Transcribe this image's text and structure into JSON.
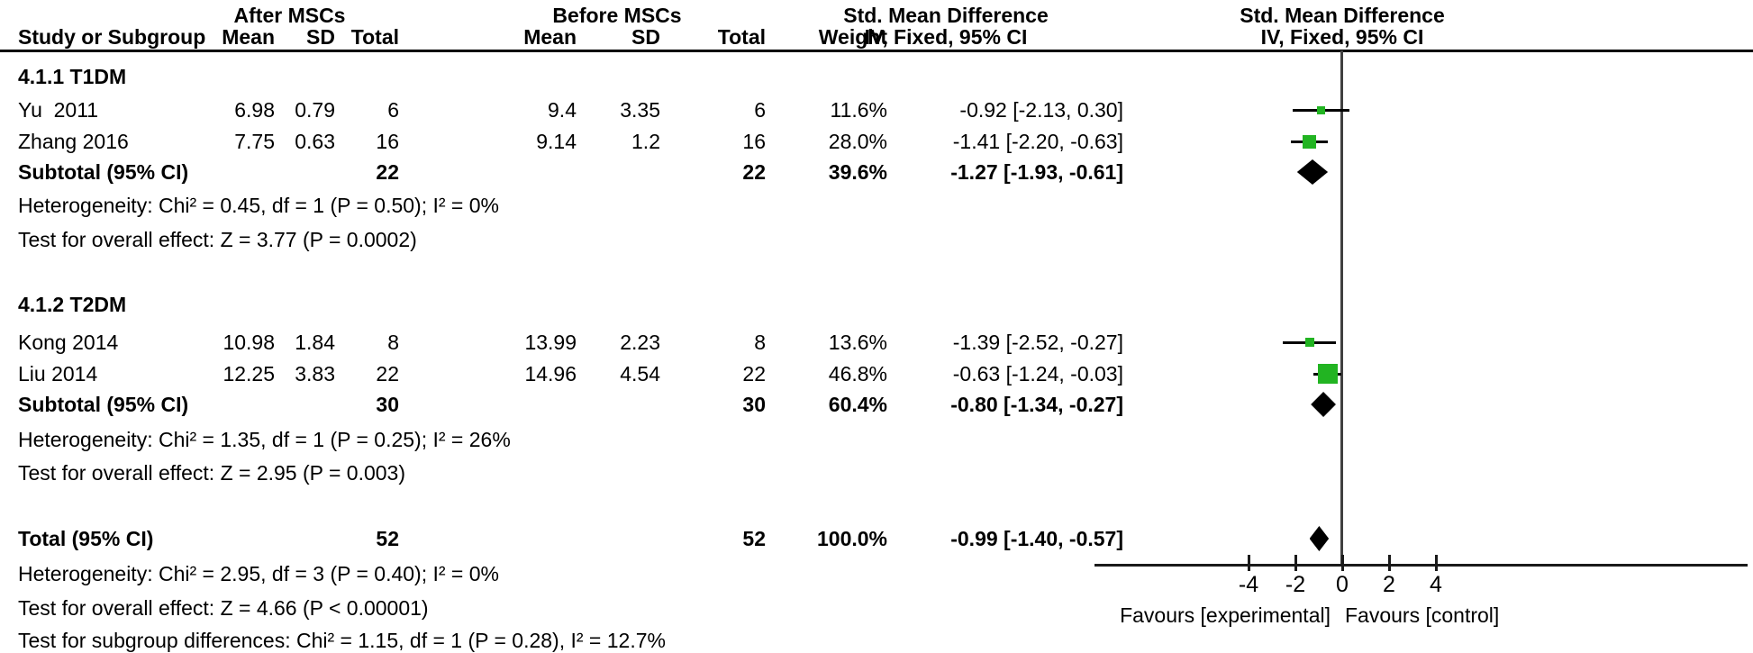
{
  "table": {
    "headers": {
      "group_after": "After MSCs",
      "group_before": "Before MSCs",
      "smd_text_col": {
        "line1": "Std. Mean Difference",
        "line2": "IV, Fixed, 95% CI"
      },
      "smd_plot_col": {
        "line1": "Std. Mean Difference",
        "line2": "IV, Fixed, 95% CI"
      },
      "study": "Study or Subgroup",
      "mean": "Mean",
      "sd": "SD",
      "total": "Total",
      "weight": "Weight"
    },
    "sections": [
      {
        "label": "4.1.1 T1DM",
        "rows": [
          {
            "study": "Yu  2011",
            "mean1": "6.98",
            "sd1": "0.79",
            "total1": "6",
            "mean2": "9.4",
            "sd2": "3.35",
            "total2": "6",
            "weight": "11.6%",
            "smd_ci": "-0.92 [-2.13, 0.30]"
          },
          {
            "study": "Zhang 2016",
            "mean1": "7.75",
            "sd1": "0.63",
            "total1": "16",
            "mean2": "9.14",
            "sd2": "1.2",
            "total2": "16",
            "weight": "28.0%",
            "smd_ci": "-1.41 [-2.20, -0.63]"
          }
        ],
        "subtotal": {
          "study": "Subtotal (95% CI)",
          "total1": "22",
          "total2": "22",
          "weight": "39.6%",
          "smd_ci": "-1.27 [-1.93, -0.61]"
        },
        "heterogeneity": "Heterogeneity: Chi² = 0.45, df = 1 (P = 0.50); I² = 0%",
        "overall_effect": "Test for overall effect: Z = 3.77 (P = 0.0002)"
      },
      {
        "label": "4.1.2 T2DM",
        "rows": [
          {
            "study": "Kong 2014",
            "mean1": "10.98",
            "sd1": "1.84",
            "total1": "8",
            "mean2": "13.99",
            "sd2": "2.23",
            "total2": "8",
            "weight": "13.6%",
            "smd_ci": "-1.39 [-2.52, -0.27]"
          },
          {
            "study": "Liu 2014",
            "mean1": "12.25",
            "sd1": "3.83",
            "total1": "22",
            "mean2": "14.96",
            "sd2": "4.54",
            "total2": "22",
            "weight": "46.8%",
            "smd_ci": "-0.63 [-1.24, -0.03]"
          }
        ],
        "subtotal": {
          "study": "Subtotal (95% CI)",
          "total1": "30",
          "total2": "30",
          "weight": "60.4%",
          "smd_ci": "-0.80 [-1.34, -0.27]"
        },
        "heterogeneity": "Heterogeneity: Chi² = 1.35, df = 1 (P = 0.25); I² = 26%",
        "overall_effect": "Test for overall effect: Z = 2.95 (P = 0.003)"
      }
    ],
    "total_row": {
      "study": "Total (95% CI)",
      "total1": "52",
      "total2": "52",
      "weight": "100.0%",
      "smd_ci": "-0.99 [-1.40, -0.57]"
    },
    "footer": {
      "heterogeneity": "Heterogeneity: Chi² = 2.95, df = 3 (P = 0.40); I² = 0%",
      "overall_effect": "Test for overall effect: Z = 4.66 (P < 0.00001)",
      "subgroup_diff": "Test for subgroup differences: Chi² = 1.15, df = 1 (P = 0.28), I² = 12.7%"
    }
  },
  "chart_data": {
    "type": "scatter",
    "variant": "forest-plot",
    "effect_label": "Std. Mean Difference",
    "method": "IV, Fixed, 95% CI",
    "x_axis": {
      "ticks": [
        -4,
        -2,
        0,
        2,
        4
      ],
      "tick_labels": [
        "-4",
        "-2",
        "0",
        "2",
        "4"
      ],
      "label_left": "Favours [experimental]",
      "label_right": "Favours [control]"
    },
    "studies": [
      {
        "group": "4.1.1 T1DM",
        "name": "Yu 2011",
        "smd": -0.92,
        "ci_low": -2.13,
        "ci_high": 0.3,
        "weight_pct": 11.6
      },
      {
        "group": "4.1.1 T1DM",
        "name": "Zhang 2016",
        "smd": -1.41,
        "ci_low": -2.2,
        "ci_high": -0.63,
        "weight_pct": 28.0
      },
      {
        "group": "4.1.2 T2DM",
        "name": "Kong 2014",
        "smd": -1.39,
        "ci_low": -2.52,
        "ci_high": -0.27,
        "weight_pct": 13.6
      },
      {
        "group": "4.1.2 T2DM",
        "name": "Liu 2014",
        "smd": -0.63,
        "ci_low": -1.24,
        "ci_high": -0.03,
        "weight_pct": 46.8
      }
    ],
    "subtotals": [
      {
        "group": "4.1.1 T1DM",
        "smd": -1.27,
        "ci_low": -1.93,
        "ci_high": -0.61,
        "weight_pct": 39.6
      },
      {
        "group": "4.1.2 T2DM",
        "smd": -0.8,
        "ci_low": -1.34,
        "ci_high": -0.27,
        "weight_pct": 60.4
      }
    ],
    "total": {
      "smd": -0.99,
      "ci_low": -1.4,
      "ci_high": -0.57,
      "weight_pct": 100.0
    }
  },
  "colors": {
    "marker_green": "#22b422",
    "diamond_black": "#000000",
    "zero_line": "#404040"
  }
}
